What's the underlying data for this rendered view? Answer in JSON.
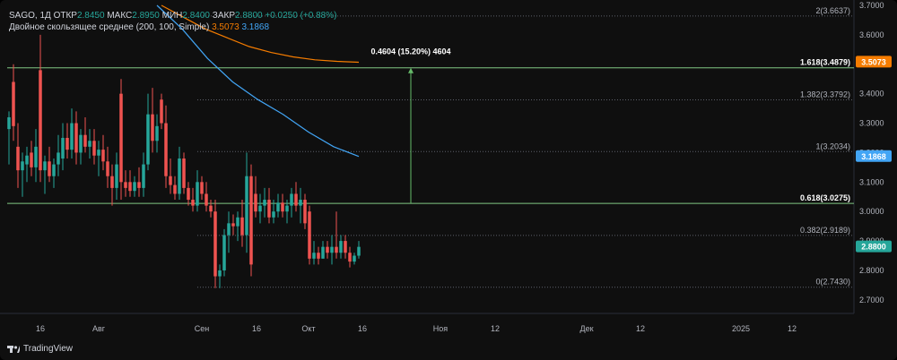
{
  "legend": {
    "symbol": "SAGO, 1Д",
    "open_label": "ОТКР",
    "open": "2.8450",
    "high_label": "МАКС",
    "high": "2.8950",
    "low_label": "МИН",
    "low": "2.8400",
    "close_label": "ЗАКР",
    "close": "2.8800",
    "change": "+0.0250 (+0.88%)",
    "indicator": "Двойное скользящее среднее (200, 100, Simple)",
    "ma1_value": "3.5073",
    "ma2_value": "3.1868"
  },
  "branding": {
    "text": "TradingView"
  },
  "colors": {
    "up": "#26a69a",
    "down": "#ef5350",
    "ma200": "#f57c00",
    "ma100": "#42a5f5",
    "fib": "#81c784",
    "measure": "#66bb6a",
    "price_tag": "#2962ff"
  },
  "chart_data": {
    "type": "candlestick",
    "ylim": [
      2.66,
      3.7
    ],
    "y_ticks": [
      "3.7000",
      "3.6000",
      "3.5000",
      "3.4000",
      "3.3000",
      "3.2000",
      "3.1000",
      "3.0000",
      "2.9000",
      "2.8000",
      "2.7000"
    ],
    "x_ticks": [
      "16",
      "Авг",
      "Сен",
      "16",
      "Окт",
      "16",
      "Ноя",
      "12",
      "Дек",
      "12",
      "2025",
      "12"
    ],
    "candles": [
      {
        "o": 3.28,
        "h": 3.34,
        "l": 3.16,
        "c": 3.32
      },
      {
        "o": 3.44,
        "h": 3.5,
        "l": 3.24,
        "c": 3.29
      },
      {
        "o": 3.22,
        "h": 3.3,
        "l": 3.08,
        "c": 3.14
      },
      {
        "o": 3.14,
        "h": 3.2,
        "l": 3.05,
        "c": 3.17
      },
      {
        "o": 3.16,
        "h": 3.22,
        "l": 3.1,
        "c": 3.19
      },
      {
        "o": 3.2,
        "h": 3.24,
        "l": 3.12,
        "c": 3.15
      },
      {
        "o": 3.15,
        "h": 3.28,
        "l": 3.1,
        "c": 3.22
      },
      {
        "o": 3.48,
        "h": 3.6,
        "l": 3.1,
        "c": 3.14
      },
      {
        "o": 3.14,
        "h": 3.19,
        "l": 3.06,
        "c": 3.17
      },
      {
        "o": 3.17,
        "h": 3.22,
        "l": 3.1,
        "c": 3.12
      },
      {
        "o": 3.12,
        "h": 3.18,
        "l": 3.08,
        "c": 3.16
      },
      {
        "o": 3.16,
        "h": 3.26,
        "l": 3.12,
        "c": 3.2
      },
      {
        "o": 3.18,
        "h": 3.3,
        "l": 3.14,
        "c": 3.25
      },
      {
        "o": 3.25,
        "h": 3.3,
        "l": 3.18,
        "c": 3.21
      },
      {
        "o": 3.21,
        "h": 3.35,
        "l": 3.18,
        "c": 3.3
      },
      {
        "o": 3.3,
        "h": 3.34,
        "l": 3.16,
        "c": 3.2
      },
      {
        "o": 3.2,
        "h": 3.28,
        "l": 3.16,
        "c": 3.26
      },
      {
        "o": 3.26,
        "h": 3.32,
        "l": 3.2,
        "c": 3.22
      },
      {
        "o": 3.22,
        "h": 3.28,
        "l": 3.18,
        "c": 3.24
      },
      {
        "o": 3.24,
        "h": 3.28,
        "l": 3.16,
        "c": 3.19
      },
      {
        "o": 3.19,
        "h": 3.24,
        "l": 3.12,
        "c": 3.21
      },
      {
        "o": 3.21,
        "h": 3.26,
        "l": 3.14,
        "c": 3.17
      },
      {
        "o": 3.17,
        "h": 3.22,
        "l": 3.08,
        "c": 3.12
      },
      {
        "o": 3.12,
        "h": 3.16,
        "l": 3.02,
        "c": 3.08
      },
      {
        "o": 3.08,
        "h": 3.2,
        "l": 3.04,
        "c": 3.16
      },
      {
        "o": 3.4,
        "h": 3.45,
        "l": 3.04,
        "c": 3.1
      },
      {
        "o": 3.1,
        "h": 3.14,
        "l": 3.05,
        "c": 3.08
      },
      {
        "o": 3.1,
        "h": 3.14,
        "l": 3.05,
        "c": 3.07
      },
      {
        "o": 3.07,
        "h": 3.12,
        "l": 3.05,
        "c": 3.1
      },
      {
        "o": 3.1,
        "h": 3.15,
        "l": 3.05,
        "c": 3.08
      },
      {
        "o": 3.08,
        "h": 3.2,
        "l": 3.05,
        "c": 3.16
      },
      {
        "o": 3.16,
        "h": 3.4,
        "l": 3.14,
        "c": 3.33
      },
      {
        "o": 3.33,
        "h": 3.42,
        "l": 3.2,
        "c": 3.24
      },
      {
        "o": 3.24,
        "h": 3.33,
        "l": 3.2,
        "c": 3.29
      },
      {
        "o": 3.38,
        "h": 3.4,
        "l": 3.28,
        "c": 3.3
      },
      {
        "o": 3.3,
        "h": 3.36,
        "l": 3.08,
        "c": 3.12
      },
      {
        "o": 3.12,
        "h": 3.18,
        "l": 3.06,
        "c": 3.09
      },
      {
        "o": 3.09,
        "h": 3.12,
        "l": 3.04,
        "c": 3.06
      },
      {
        "o": 3.06,
        "h": 3.22,
        "l": 3.04,
        "c": 3.18
      },
      {
        "o": 3.18,
        "h": 3.2,
        "l": 3.06,
        "c": 3.08
      },
      {
        "o": 3.08,
        "h": 3.1,
        "l": 3.02,
        "c": 3.04
      },
      {
        "o": 3.04,
        "h": 3.08,
        "l": 3.0,
        "c": 3.02
      },
      {
        "o": 3.02,
        "h": 3.14,
        "l": 3.0,
        "c": 3.1
      },
      {
        "o": 3.1,
        "h": 3.12,
        "l": 3.04,
        "c": 3.06
      },
      {
        "o": 3.06,
        "h": 3.1,
        "l": 3.0,
        "c": 3.02
      },
      {
        "o": 3.02,
        "h": 3.04,
        "l": 2.98,
        "c": 3.0
      },
      {
        "o": 3.0,
        "h": 3.04,
        "l": 2.74,
        "c": 2.78
      },
      {
        "o": 2.78,
        "h": 2.82,
        "l": 2.74,
        "c": 2.8
      },
      {
        "o": 2.8,
        "h": 2.94,
        "l": 2.78,
        "c": 2.92
      },
      {
        "o": 2.92,
        "h": 3.0,
        "l": 2.86,
        "c": 2.96
      },
      {
        "o": 2.96,
        "h": 2.99,
        "l": 2.92,
        "c": 2.95
      },
      {
        "o": 2.95,
        "h": 3.0,
        "l": 2.9,
        "c": 2.98
      },
      {
        "o": 2.98,
        "h": 3.04,
        "l": 2.88,
        "c": 2.92
      },
      {
        "o": 2.92,
        "h": 3.2,
        "l": 2.86,
        "c": 3.12
      },
      {
        "o": 3.12,
        "h": 3.16,
        "l": 2.78,
        "c": 2.82
      },
      {
        "o": 3.06,
        "h": 3.12,
        "l": 2.98,
        "c": 3.0
      },
      {
        "o": 3.0,
        "h": 3.06,
        "l": 2.96,
        "c": 3.02
      },
      {
        "o": 3.02,
        "h": 3.08,
        "l": 2.98,
        "c": 3.04
      },
      {
        "o": 3.04,
        "h": 3.08,
        "l": 2.96,
        "c": 2.98
      },
      {
        "o": 2.98,
        "h": 3.04,
        "l": 2.96,
        "c": 3.0
      },
      {
        "o": 3.0,
        "h": 3.06,
        "l": 2.98,
        "c": 3.03
      },
      {
        "o": 3.03,
        "h": 3.06,
        "l": 2.98,
        "c": 3.0
      },
      {
        "o": 3.0,
        "h": 3.04,
        "l": 2.96,
        "c": 3.02
      },
      {
        "o": 3.02,
        "h": 3.08,
        "l": 2.98,
        "c": 3.06
      },
      {
        "o": 3.06,
        "h": 3.1,
        "l": 3.0,
        "c": 3.02
      },
      {
        "o": 3.02,
        "h": 3.08,
        "l": 2.96,
        "c": 3.04
      },
      {
        "o": 3.04,
        "h": 3.06,
        "l": 2.94,
        "c": 2.96
      },
      {
        "o": 3.0,
        "h": 3.02,
        "l": 2.82,
        "c": 2.84
      },
      {
        "o": 2.84,
        "h": 2.9,
        "l": 2.82,
        "c": 2.86
      },
      {
        "o": 2.86,
        "h": 2.88,
        "l": 2.82,
        "c": 2.84
      },
      {
        "o": 2.84,
        "h": 2.9,
        "l": 2.84,
        "c": 2.88
      },
      {
        "o": 2.88,
        "h": 2.9,
        "l": 2.84,
        "c": 2.86
      },
      {
        "o": 2.86,
        "h": 2.92,
        "l": 2.82,
        "c": 2.88
      },
      {
        "o": 2.88,
        "h": 3.0,
        "l": 2.84,
        "c": 2.86
      },
      {
        "o": 2.86,
        "h": 2.92,
        "l": 2.84,
        "c": 2.9
      },
      {
        "o": 2.9,
        "h": 2.92,
        "l": 2.84,
        "c": 2.86
      },
      {
        "o": 2.86,
        "h": 2.88,
        "l": 2.81,
        "c": 2.83
      },
      {
        "o": 2.83,
        "h": 2.86,
        "l": 2.82,
        "c": 2.85
      },
      {
        "o": 2.85,
        "h": 2.9,
        "l": 2.84,
        "c": 2.88
      }
    ],
    "ma200": [
      3.7,
      3.66,
      3.62,
      3.59,
      3.56,
      3.54,
      3.525,
      3.515,
      3.51,
      3.507
    ],
    "ma100": [
      3.7,
      3.62,
      3.52,
      3.44,
      3.38,
      3.33,
      3.27,
      3.22,
      3.187
    ],
    "fib_levels": [
      {
        "ratio": "2",
        "value": 3.6637,
        "label": "2(3.6637)",
        "strong": false
      },
      {
        "ratio": "1.618",
        "value": 3.4879,
        "label": "1.618(3.4879)",
        "strong": true
      },
      {
        "ratio": "1.382",
        "value": 3.3792,
        "label": "1.382(3.3792)",
        "strong": false
      },
      {
        "ratio": "1",
        "value": 3.2034,
        "label": "1(3.2034)",
        "strong": false
      },
      {
        "ratio": "0.618",
        "value": 3.0275,
        "label": "0.618(3.0275)",
        "strong": true
      },
      {
        "ratio": "0.382",
        "value": 2.9189,
        "label": "0.382(2.9189)",
        "strong": false
      },
      {
        "ratio": "0",
        "value": 2.743,
        "label": "0(2.7430)",
        "strong": false
      }
    ],
    "measure": {
      "from": 3.0275,
      "to": 3.4879,
      "label": "0.4604 (15.20%) 4604"
    },
    "price_tags": [
      {
        "value": 3.5073,
        "label": "3.5073",
        "color": "#f57c00"
      },
      {
        "value": 3.1868,
        "label": "3.1868",
        "color": "#42a5f5"
      },
      {
        "value": 2.88,
        "label": "2.8800",
        "color": "#26a69a"
      }
    ]
  }
}
